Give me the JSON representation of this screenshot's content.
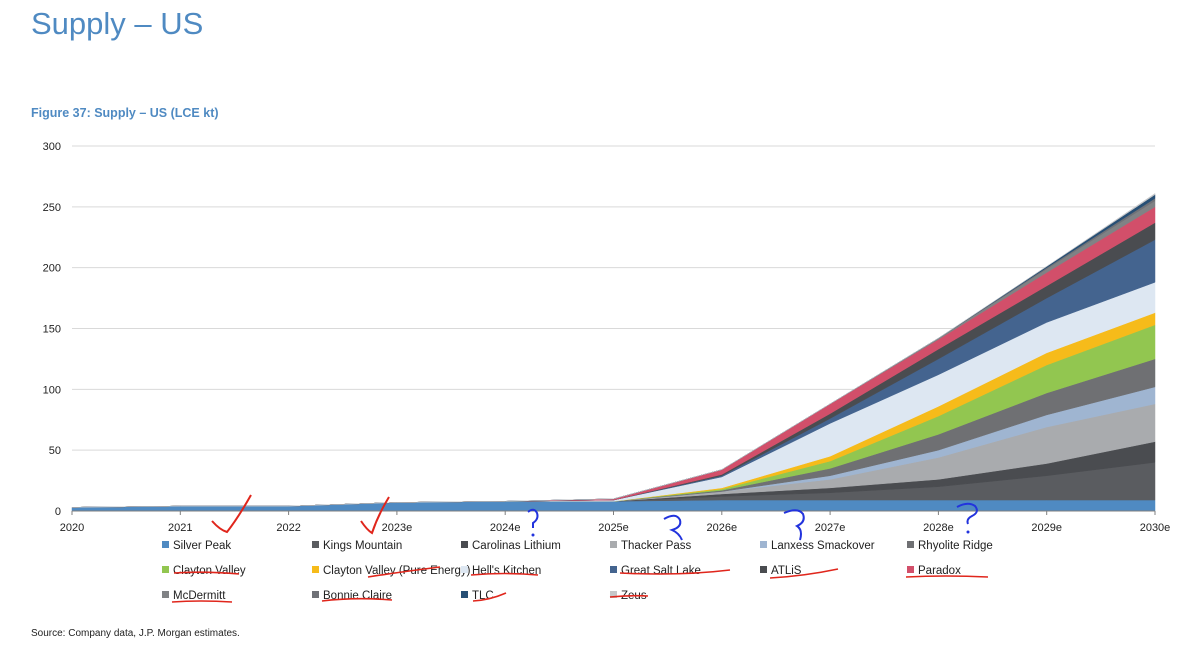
{
  "page": {
    "title": "Supply – US",
    "figure_title": "Figure 37: Supply – US (LCE kt)",
    "source": "Source: Company data, J.P. Morgan estimates."
  },
  "chart_data": {
    "type": "area",
    "stacked": true,
    "title": "Figure 37: Supply – US (LCE kt)",
    "xlabel": "",
    "ylabel": "",
    "ylim": [
      0,
      300
    ],
    "yticks": [
      0,
      50,
      100,
      150,
      200,
      250,
      300
    ],
    "grid": true,
    "legend_position": "bottom",
    "x": [
      "2020",
      "2021",
      "2022",
      "2023e",
      "2024e",
      "2025e",
      "2026e",
      "2027e",
      "2028e",
      "2029e",
      "2030e"
    ],
    "series": [
      {
        "name": "Silver Peak",
        "color": "#4f8ac2",
        "values": [
          3,
          4,
          4,
          7,
          8,
          8,
          9,
          9,
          9,
          9,
          9
        ]
      },
      {
        "name": "Kings Mountain",
        "color": "#5a5c60",
        "values": [
          0,
          0,
          0,
          0,
          0,
          0,
          3,
          6,
          11,
          20,
          31
        ]
      },
      {
        "name": "Carolinas Lithium",
        "color": "#4a4c50",
        "values": [
          0,
          0,
          0,
          0,
          0,
          0,
          2,
          4,
          6,
          10,
          17
        ]
      },
      {
        "name": "Thacker Pass",
        "color": "#a9abae",
        "values": [
          0,
          0,
          0,
          0,
          0,
          0,
          2,
          7,
          18,
          30,
          31
        ]
      },
      {
        "name": "Lanxess Smackover",
        "color": "#9fb5d1",
        "values": [
          0,
          0,
          0,
          0,
          0,
          0,
          0,
          3,
          6,
          10,
          14
        ]
      },
      {
        "name": "Rhyolite Ridge",
        "color": "#6f7073",
        "values": [
          0,
          0,
          0,
          0,
          0,
          0,
          1,
          6,
          13,
          18,
          23
        ]
      },
      {
        "name": "Clayton Valley",
        "color": "#92c650",
        "values": [
          0,
          0,
          0,
          0,
          0,
          0,
          1,
          6,
          15,
          23,
          28
        ]
      },
      {
        "name": "Clayton Valley (Pure Energy)",
        "color": "#f6bb1a",
        "values": [
          0,
          0,
          0,
          0,
          0,
          0,
          1,
          4,
          8,
          10,
          10
        ]
      },
      {
        "name": "Hell's Kitchen",
        "color": "#dde7f2",
        "values": [
          0,
          0,
          0,
          0,
          0,
          1,
          9,
          27,
          26,
          25,
          25
        ]
      },
      {
        "name": "Great Salt Lake",
        "color": "#44648f",
        "values": [
          0,
          0,
          0,
          0,
          0,
          0,
          1,
          4,
          13,
          20,
          35
        ]
      },
      {
        "name": "ATLiS",
        "color": "#4a4c50",
        "values": [
          0,
          0,
          0,
          0,
          0,
          0,
          1,
          4,
          8,
          10,
          14
        ]
      },
      {
        "name": "Paradox",
        "color": "#d24f6a",
        "values": [
          0,
          0,
          0,
          0,
          0,
          1,
          4,
          8,
          8,
          11,
          13
        ]
      },
      {
        "name": "McDermitt",
        "color": "#808285",
        "values": [
          0,
          0,
          0,
          0,
          0,
          0,
          0,
          0,
          1,
          3,
          5
        ]
      },
      {
        "name": "Bonnie Claire",
        "color": "#6f7177",
        "values": [
          0,
          0,
          0,
          0,
          0,
          0,
          0,
          0,
          0,
          1,
          2
        ]
      },
      {
        "name": "TLC",
        "color": "#274f75",
        "values": [
          0,
          0,
          0,
          0,
          0,
          0,
          0,
          0,
          0,
          1,
          3
        ]
      },
      {
        "name": "Zeus",
        "color": "#c6c7c9",
        "values": [
          0,
          0,
          0,
          0,
          0,
          0,
          0,
          0,
          0,
          0,
          1
        ]
      }
    ]
  }
}
